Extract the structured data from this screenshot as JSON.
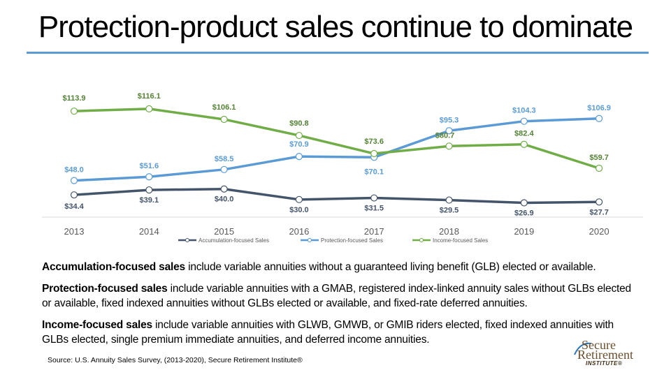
{
  "slide": {
    "title": "Protection-product sales continue to dominate"
  },
  "chart_data": {
    "type": "line",
    "x": [
      "2013",
      "2014",
      "2015",
      "2016",
      "2017",
      "2018",
      "2019",
      "2020"
    ],
    "series": [
      {
        "name": "Accumulation-focused Sales",
        "color": "#44546a",
        "values": [
          34.4,
          39.1,
          40.0,
          30.0,
          31.5,
          29.5,
          26.9,
          27.7
        ],
        "labels": [
          "$34.4",
          "$39.1",
          "$40.0",
          "$30.0",
          "$31.5",
          "$29.5",
          "$26.9",
          "$27.7"
        ]
      },
      {
        "name": "Protection-focused Sales",
        "color": "#5b9bd5",
        "values": [
          48.0,
          51.6,
          58.5,
          70.9,
          70.1,
          95.3,
          104.3,
          106.9
        ],
        "labels": [
          "$48.0",
          "$51.6",
          "$58.5",
          "$70.9",
          "$70.1",
          "$95.3",
          "$104.3",
          "$106.9"
        ]
      },
      {
        "name": "Income-focused Sales",
        "color": "#70ad47",
        "values": [
          113.9,
          116.1,
          106.1,
          90.8,
          73.6,
          80.7,
          82.4,
          59.7
        ],
        "labels": [
          "$113.9",
          "$116.1",
          "$106.1",
          "$90.8",
          "$73.6",
          "$80.7",
          "$82.4",
          "$59.7"
        ]
      }
    ],
    "label_color": "#548235",
    "legend_position": "bottom",
    "grid": false
  },
  "notes": [
    {
      "term": "Accumulation-focused sales",
      "text": " include variable annuities without a guaranteed living benefit (GLB) elected or available."
    },
    {
      "term": "Protection-focused sales",
      "text": " include variable annuities with a GMAB, registered index-linked annuity sales without GLBs elected or available, fixed indexed annuities without GLBs elected or available, and fixed-rate deferred annuities."
    },
    {
      "term": "Income-focused sales",
      "text": " include variable annuities with GLWB, GMWB, or GMIB riders elected, fixed indexed annuities with GLBs elected, single premium immediate annuities, and deferred income annuities."
    }
  ],
  "source": "Source: U.S. Annuity Sales Survey, (2013-2020), Secure Retirement Institute®",
  "logo": {
    "line1": "Secure",
    "line2": "Retirement",
    "line3": "INSTITUTE®"
  }
}
